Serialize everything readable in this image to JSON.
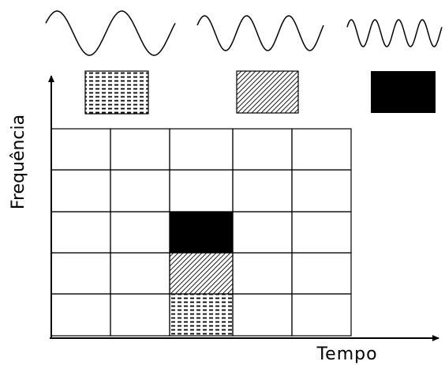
{
  "axes": {
    "y_label": "Frequência",
    "x_label": "Tempo"
  }
}
